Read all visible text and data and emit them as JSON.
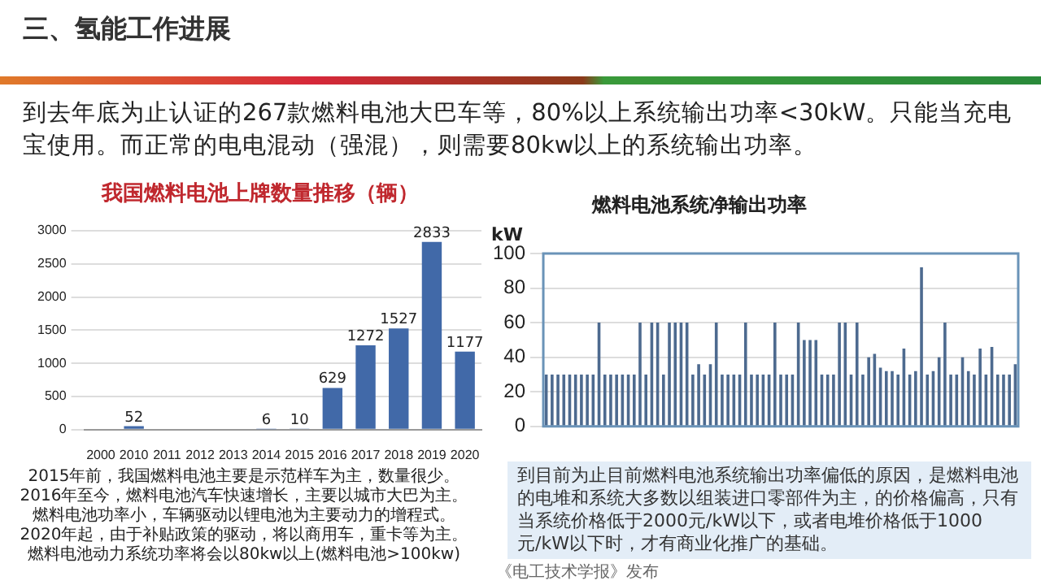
{
  "chart_data": [
    {
      "type": "other",
      "title": "三、氢能工作进展",
      "subtitle": "到去年底为止认证的267款燃料电池大巴车等，80%以上系统输出功率<30kW。只能当充电宝使用。而正常的电电混动（强混），则需要80kw以上的系统输出功率。",
      "annotations": [
        "《电工技术学报》发布"
      ]
    },
    {
      "type": "bar",
      "title": "我国燃料电池上牌数量推移（辆）",
      "categories": [
        "2000",
        "2010",
        "2011",
        "2012",
        "2013",
        "2014",
        "2015",
        "2016",
        "2017",
        "2018",
        "2019",
        "2020"
      ],
      "values": [
        null,
        52,
        null,
        null,
        null,
        6,
        10,
        629,
        1272,
        1527,
        2833,
        1177
      ],
      "color": "#4169a8",
      "ylim": [
        0,
        3000
      ],
      "yticks": [
        0,
        500,
        1000,
        1500,
        2000,
        2500,
        3000
      ],
      "grid": "y",
      "data_labels": true,
      "annotations": [
        "2015年前，我国燃料电池主要是示范样车为主，数量很少。",
        "2016年至今，燃料电池汽车快速增长，主要以城市大巴为主。",
        "燃料电池功率小，车辆驱动以锂电池为主要动力的增程式。",
        "2020年起，由于补贴政策的驱动，将以商用车，重卡等为主。",
        "燃料电池动力系统功率将会以80kw以上(燃料电池>100kw)"
      ]
    },
    {
      "type": "bar",
      "title": "燃料电池系统净输出功率",
      "ylabel": "kW",
      "categories": [
        null,
        null,
        null,
        null,
        null,
        null,
        null,
        null,
        null,
        null,
        null,
        null,
        null,
        null,
        null,
        null,
        null,
        null,
        null,
        null,
        null,
        null,
        null,
        null,
        null,
        null,
        null,
        null,
        null,
        null,
        null,
        null,
        null,
        null,
        null,
        null,
        null,
        null,
        null,
        null,
        null,
        null,
        null,
        null,
        null,
        null,
        null,
        null,
        null,
        null,
        null,
        null,
        null,
        null,
        null,
        null,
        null,
        null,
        null,
        null,
        null,
        null,
        null,
        null,
        null,
        null,
        null,
        null,
        null,
        null,
        null,
        null,
        null,
        null,
        null,
        null,
        null,
        null,
        null,
        null,
        null
      ],
      "values": [
        30,
        30,
        30,
        30,
        30,
        30,
        30,
        30,
        30,
        60,
        30,
        30,
        30,
        30,
        30,
        30,
        60,
        30,
        60,
        60,
        30,
        60,
        60,
        60,
        60,
        30,
        36,
        30,
        36,
        60,
        30,
        30,
        30,
        30,
        60,
        30,
        30,
        30,
        30,
        60,
        30,
        30,
        30,
        60,
        50,
        50,
        50,
        30,
        30,
        30,
        60,
        60,
        30,
        60,
        30,
        40,
        42,
        34,
        32,
        32,
        30,
        45,
        30,
        32,
        92,
        30,
        32,
        40,
        60,
        30,
        30,
        40,
        32,
        30,
        45,
        30,
        46,
        30,
        30,
        30,
        36
      ],
      "color": "#4d6a8f",
      "ylim": [
        0,
        100
      ],
      "yticks": [
        0,
        20,
        40,
        60,
        80,
        100
      ],
      "grid": "y",
      "annotations": [
        "到目前为止目前燃料电池系统输出功率偏低的原因，是燃料电池的电堆和系统大多数以组装进口零部件为主，的价格偏高，只有当系统价格低于2000元/kW以下，或者电堆价格低于1000元/kW以下时，才有商业化推广的基础。"
      ]
    }
  ]
}
